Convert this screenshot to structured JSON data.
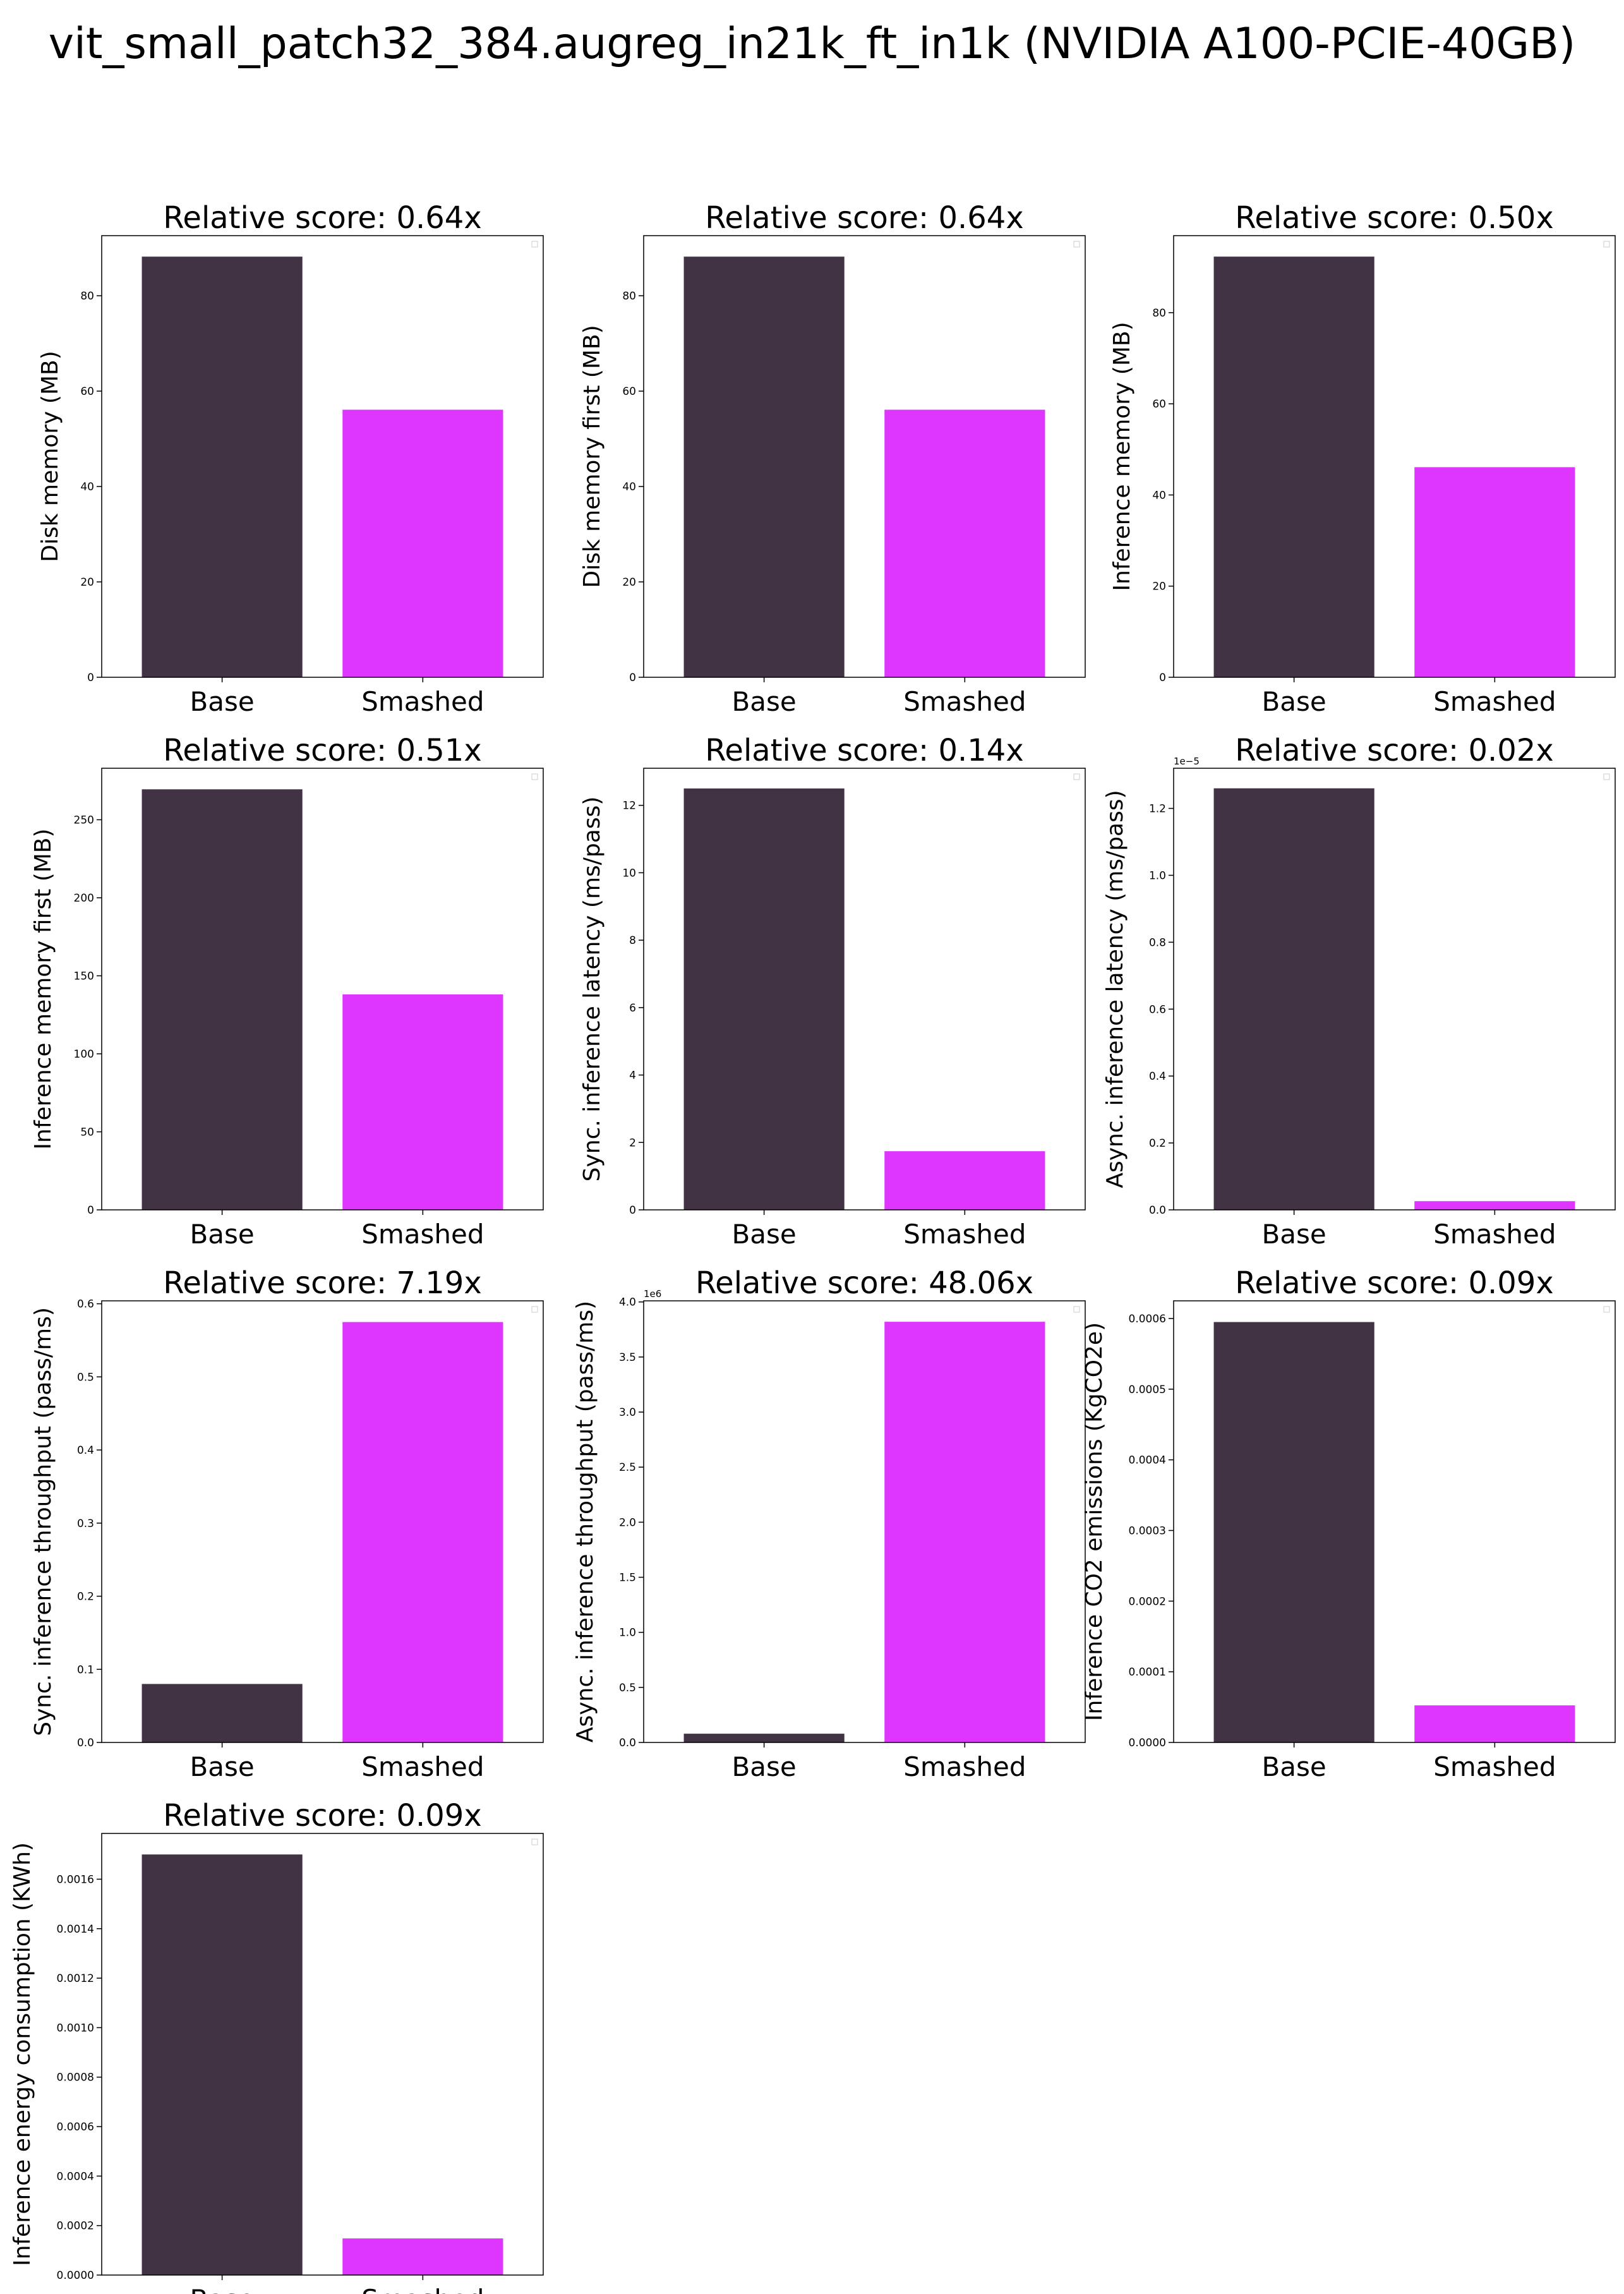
{
  "figure_title": "vit_small_patch32_384.augreg_in21k_ft_in1k (NVIDIA A100-PCIE-40GB)",
  "colors": {
    "base": "#413244",
    "smashed": "#DE35FF"
  },
  "chart_data": [
    {
      "type": "bar",
      "title": "Relative score: 0.64x",
      "ylabel": "Disk memory (MB)",
      "categories": [
        "Base",
        "Smashed"
      ],
      "values": [
        88.2,
        56.1
      ],
      "ylim": [
        0,
        92.6
      ],
      "yticks": [
        0,
        20,
        40,
        60,
        80
      ],
      "ytick_labels": [
        "0",
        "20",
        "40",
        "60",
        "80"
      ],
      "offset_label": ""
    },
    {
      "type": "bar",
      "title": "Relative score: 0.64x",
      "ylabel": "Disk memory first (MB)",
      "categories": [
        "Base",
        "Smashed"
      ],
      "values": [
        88.2,
        56.1
      ],
      "ylim": [
        0,
        92.6
      ],
      "yticks": [
        0,
        20,
        40,
        60,
        80
      ],
      "ytick_labels": [
        "0",
        "20",
        "40",
        "60",
        "80"
      ],
      "offset_label": ""
    },
    {
      "type": "bar",
      "title": "Relative score: 0.50x",
      "ylabel": "Inference memory (MB)",
      "categories": [
        "Base",
        "Smashed"
      ],
      "values": [
        92.3,
        46.1
      ],
      "ylim": [
        0,
        96.9
      ],
      "yticks": [
        0,
        20,
        40,
        60,
        80
      ],
      "ytick_labels": [
        "0",
        "20",
        "40",
        "60",
        "80"
      ],
      "offset_label": ""
    },
    {
      "type": "bar",
      "title": "Relative score: 0.51x",
      "ylabel": "Inference memory first (MB)",
      "categories": [
        "Base",
        "Smashed"
      ],
      "values": [
        269.5,
        138.1
      ],
      "ylim": [
        0,
        283
      ],
      "yticks": [
        0,
        50,
        100,
        150,
        200,
        250
      ],
      "ytick_labels": [
        "0",
        "50",
        "100",
        "150",
        "200",
        "250"
      ],
      "offset_label": ""
    },
    {
      "type": "bar",
      "title": "Relative score: 0.14x",
      "ylabel": "Sync. inference latency (ms/pass)",
      "categories": [
        "Base",
        "Smashed"
      ],
      "values": [
        12.5,
        1.74
      ],
      "ylim": [
        0,
        13.1
      ],
      "yticks": [
        0,
        2,
        4,
        6,
        8,
        10,
        12
      ],
      "ytick_labels": [
        "0",
        "2",
        "4",
        "6",
        "8",
        "10",
        "12"
      ],
      "offset_label": ""
    },
    {
      "type": "bar",
      "title": "Relative score: 0.02x",
      "ylabel": "Async. inference latency (ms/pass)",
      "categories": [
        "Base",
        "Smashed"
      ],
      "values": [
        1.26e-05,
        2.6e-07
      ],
      "ylim": [
        0,
        1.32e-05
      ],
      "yticks": [
        0,
        2e-06,
        4e-06,
        6e-06,
        8e-06,
        1e-05,
        1.2e-05
      ],
      "ytick_labels": [
        "0.0",
        "0.2",
        "0.4",
        "0.6",
        "0.8",
        "1.0",
        "1.2"
      ],
      "offset_label": "1e−5"
    },
    {
      "type": "bar",
      "title": "Relative score: 7.19x",
      "ylabel": "Sync. inference throughput (pass/ms)",
      "categories": [
        "Base",
        "Smashed"
      ],
      "values": [
        0.08,
        0.575
      ],
      "ylim": [
        0,
        0.604
      ],
      "yticks": [
        0,
        0.1,
        0.2,
        0.3,
        0.4,
        0.5,
        0.6
      ],
      "ytick_labels": [
        "0.0",
        "0.1",
        "0.2",
        "0.3",
        "0.4",
        "0.5",
        "0.6"
      ],
      "offset_label": ""
    },
    {
      "type": "bar",
      "title": "Relative score: 48.06x",
      "ylabel": "Async. inference throughput (pass/ms)",
      "categories": [
        "Base",
        "Smashed"
      ],
      "values": [
        79500,
        3820000
      ],
      "ylim": [
        0,
        4010000
      ],
      "yticks": [
        0,
        500000,
        1000000,
        1500000,
        2000000,
        2500000,
        3000000,
        3500000,
        4000000
      ],
      "ytick_labels": [
        "0.0",
        "0.5",
        "1.0",
        "1.5",
        "2.0",
        "2.5",
        "3.0",
        "3.5",
        "4.0"
      ],
      "offset_label": "1e6"
    },
    {
      "type": "bar",
      "title": "Relative score: 0.09x",
      "ylabel": "Inference CO2 emissions (KgCO2e)",
      "categories": [
        "Base",
        "Smashed"
      ],
      "values": [
        0.000595,
        5.25e-05
      ],
      "ylim": [
        0,
        0.000625
      ],
      "yticks": [
        0,
        0.0001,
        0.0002,
        0.0003,
        0.0004,
        0.0005,
        0.0006
      ],
      "ytick_labels": [
        "0.0000",
        "0.0001",
        "0.0002",
        "0.0003",
        "0.0004",
        "0.0005",
        "0.0006"
      ],
      "offset_label": ""
    },
    {
      "type": "bar",
      "title": "Relative score: 0.09x",
      "ylabel": "Inference energy consumption (KWh)",
      "categories": [
        "Base",
        "Smashed"
      ],
      "values": [
        0.0017,
        0.000148
      ],
      "ylim": [
        0,
        0.001785
      ],
      "yticks": [
        0,
        0.0002,
        0.0004,
        0.0006,
        0.0008,
        0.001,
        0.0012,
        0.0014,
        0.0016
      ],
      "ytick_labels": [
        "0.0000",
        "0.0002",
        "0.0004",
        "0.0006",
        "0.0008",
        "0.0010",
        "0.0012",
        "0.0014",
        "0.0016"
      ],
      "offset_label": ""
    }
  ]
}
